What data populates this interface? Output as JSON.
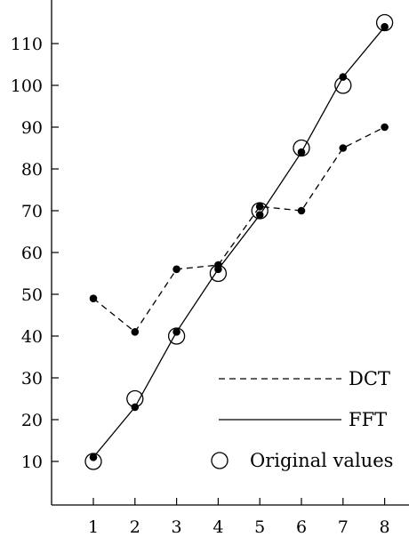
{
  "chart_data": {
    "type": "line",
    "title": "",
    "xlabel": "",
    "ylabel": "",
    "x": [
      1,
      2,
      3,
      4,
      5,
      6,
      7,
      8
    ],
    "xlim": [
      0.1,
      8.5
    ],
    "ylim": [
      0,
      117
    ],
    "x_ticks": [
      "1",
      "2",
      "3",
      "4",
      "5",
      "6",
      "7",
      "8"
    ],
    "y_ticks": [
      "10",
      "20",
      "30",
      "40",
      "50",
      "60",
      "70",
      "80",
      "90",
      "100",
      "110"
    ],
    "grid": false,
    "legend_position": "bottom-right",
    "series": [
      {
        "name": "DCT",
        "style": "dashed",
        "markers": "dot",
        "color": "#000000",
        "values": [
          49,
          41,
          56,
          57,
          71,
          70,
          85,
          90
        ]
      },
      {
        "name": "FFT",
        "style": "solid",
        "markers": "dot",
        "color": "#000000",
        "values": [
          11,
          23,
          41,
          56,
          69,
          84,
          102,
          114
        ]
      },
      {
        "name": "Original values",
        "style": "none",
        "markers": "open-circle",
        "color": "#000000",
        "values": [
          10,
          25,
          40,
          55,
          70,
          85,
          100,
          115
        ]
      }
    ]
  }
}
